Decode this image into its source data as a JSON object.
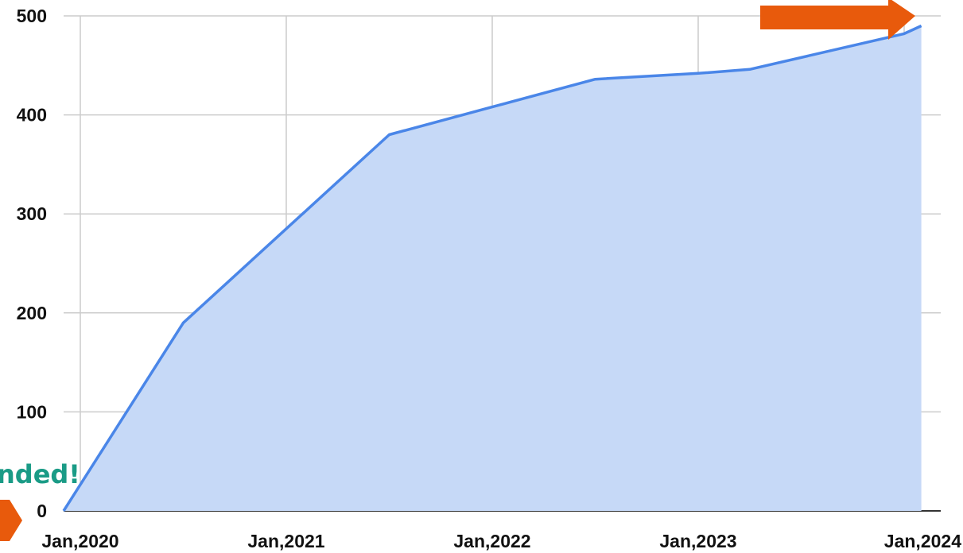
{
  "chart_data": {
    "type": "area",
    "x": [
      "2020-01",
      "2020-07",
      "2021-07",
      "2022-01",
      "2022-07",
      "2023-01",
      "2023-04",
      "2024-01",
      "2024-02"
    ],
    "series": [
      {
        "values": [
          0,
          190,
          380,
          408,
          436,
          442,
          446,
          482,
          490
        ]
      }
    ],
    "x_ticks": [
      {
        "date": "2020-01",
        "label": "Jan,2020"
      },
      {
        "date": "2021-01",
        "label": "Jan,2021"
      },
      {
        "date": "2022-01",
        "label": "Jan,2022"
      },
      {
        "date": "2023-01",
        "label": "Jan,2023"
      },
      {
        "date": "2024-01",
        "label": "Jan,2024"
      }
    ],
    "y_ticks": [
      0,
      100,
      200,
      300,
      400,
      500
    ],
    "ylim": [
      0,
      500
    ],
    "xlim": [
      "2020-01",
      "2024-02"
    ],
    "grid": true,
    "title": "",
    "xlabel": "",
    "ylabel": "",
    "annotations": [
      {
        "text": "nded!",
        "color": "#1a9b86"
      }
    ],
    "colors": {
      "line": "#4a86e8",
      "fill": "#c6d9f7",
      "grid": "#cccccc",
      "arrow": "#e85a0c"
    }
  }
}
